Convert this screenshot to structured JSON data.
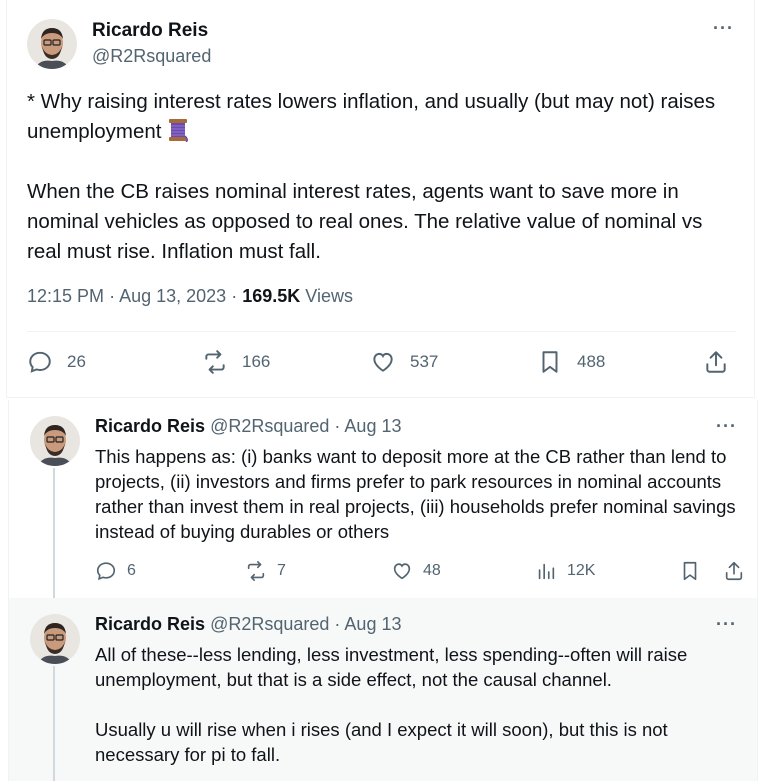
{
  "main_tweet": {
    "author_name": "Ricardo Reis",
    "author_handle": "@R2Rsquared",
    "paragraph1": "* Why raising interest rates lowers inflation, and usually (but may not) raises unemployment",
    "paragraph2": "When the CB raises nominal interest rates, agents want to save more in nominal vehicles as opposed to real ones. The relative value of nominal vs real must rise. Inflation must fall.",
    "time": "12:15 PM",
    "separator": "·",
    "date": "Aug 13, 2023",
    "views_count": "169.5K",
    "views_label": "Views",
    "replies": "26",
    "reposts": "166",
    "likes": "537",
    "bookmarks": "488"
  },
  "reply1": {
    "author_name": "Ricardo Reis",
    "author_handle": "@R2Rsquared",
    "date": "· Aug 13",
    "text": "This happens as: (i) banks want to deposit more at the CB rather than lend to projects, (ii) investors and firms prefer to park resources in nominal accounts rather than invest them in real projects, (iii) households prefer nominal savings instead of buying durables or others",
    "replies": "6",
    "reposts": "7",
    "likes": "48",
    "views": "12K"
  },
  "reply2": {
    "author_name": "Ricardo Reis",
    "author_handle": "@R2Rsquared",
    "date": "· Aug 13",
    "paragraph1": "All of these--less lending, less investment, less spending--often will raise unemployment, but that is a side effect, not the causal channel.",
    "paragraph2": "Usually u will rise when i rises (and I expect it will soon), but this is not necessary for pi to fall."
  },
  "more_label": "···",
  "icons": [
    "reply-icon",
    "repost-icon",
    "like-icon",
    "bookmark-icon",
    "share-icon",
    "views-icon",
    "more-icon",
    "thread-emoji-icon"
  ],
  "colors": {
    "text": "#0f1419",
    "secondary": "#536471",
    "border": "#eff3f4",
    "highlight_bg": "#f7f9f9"
  }
}
